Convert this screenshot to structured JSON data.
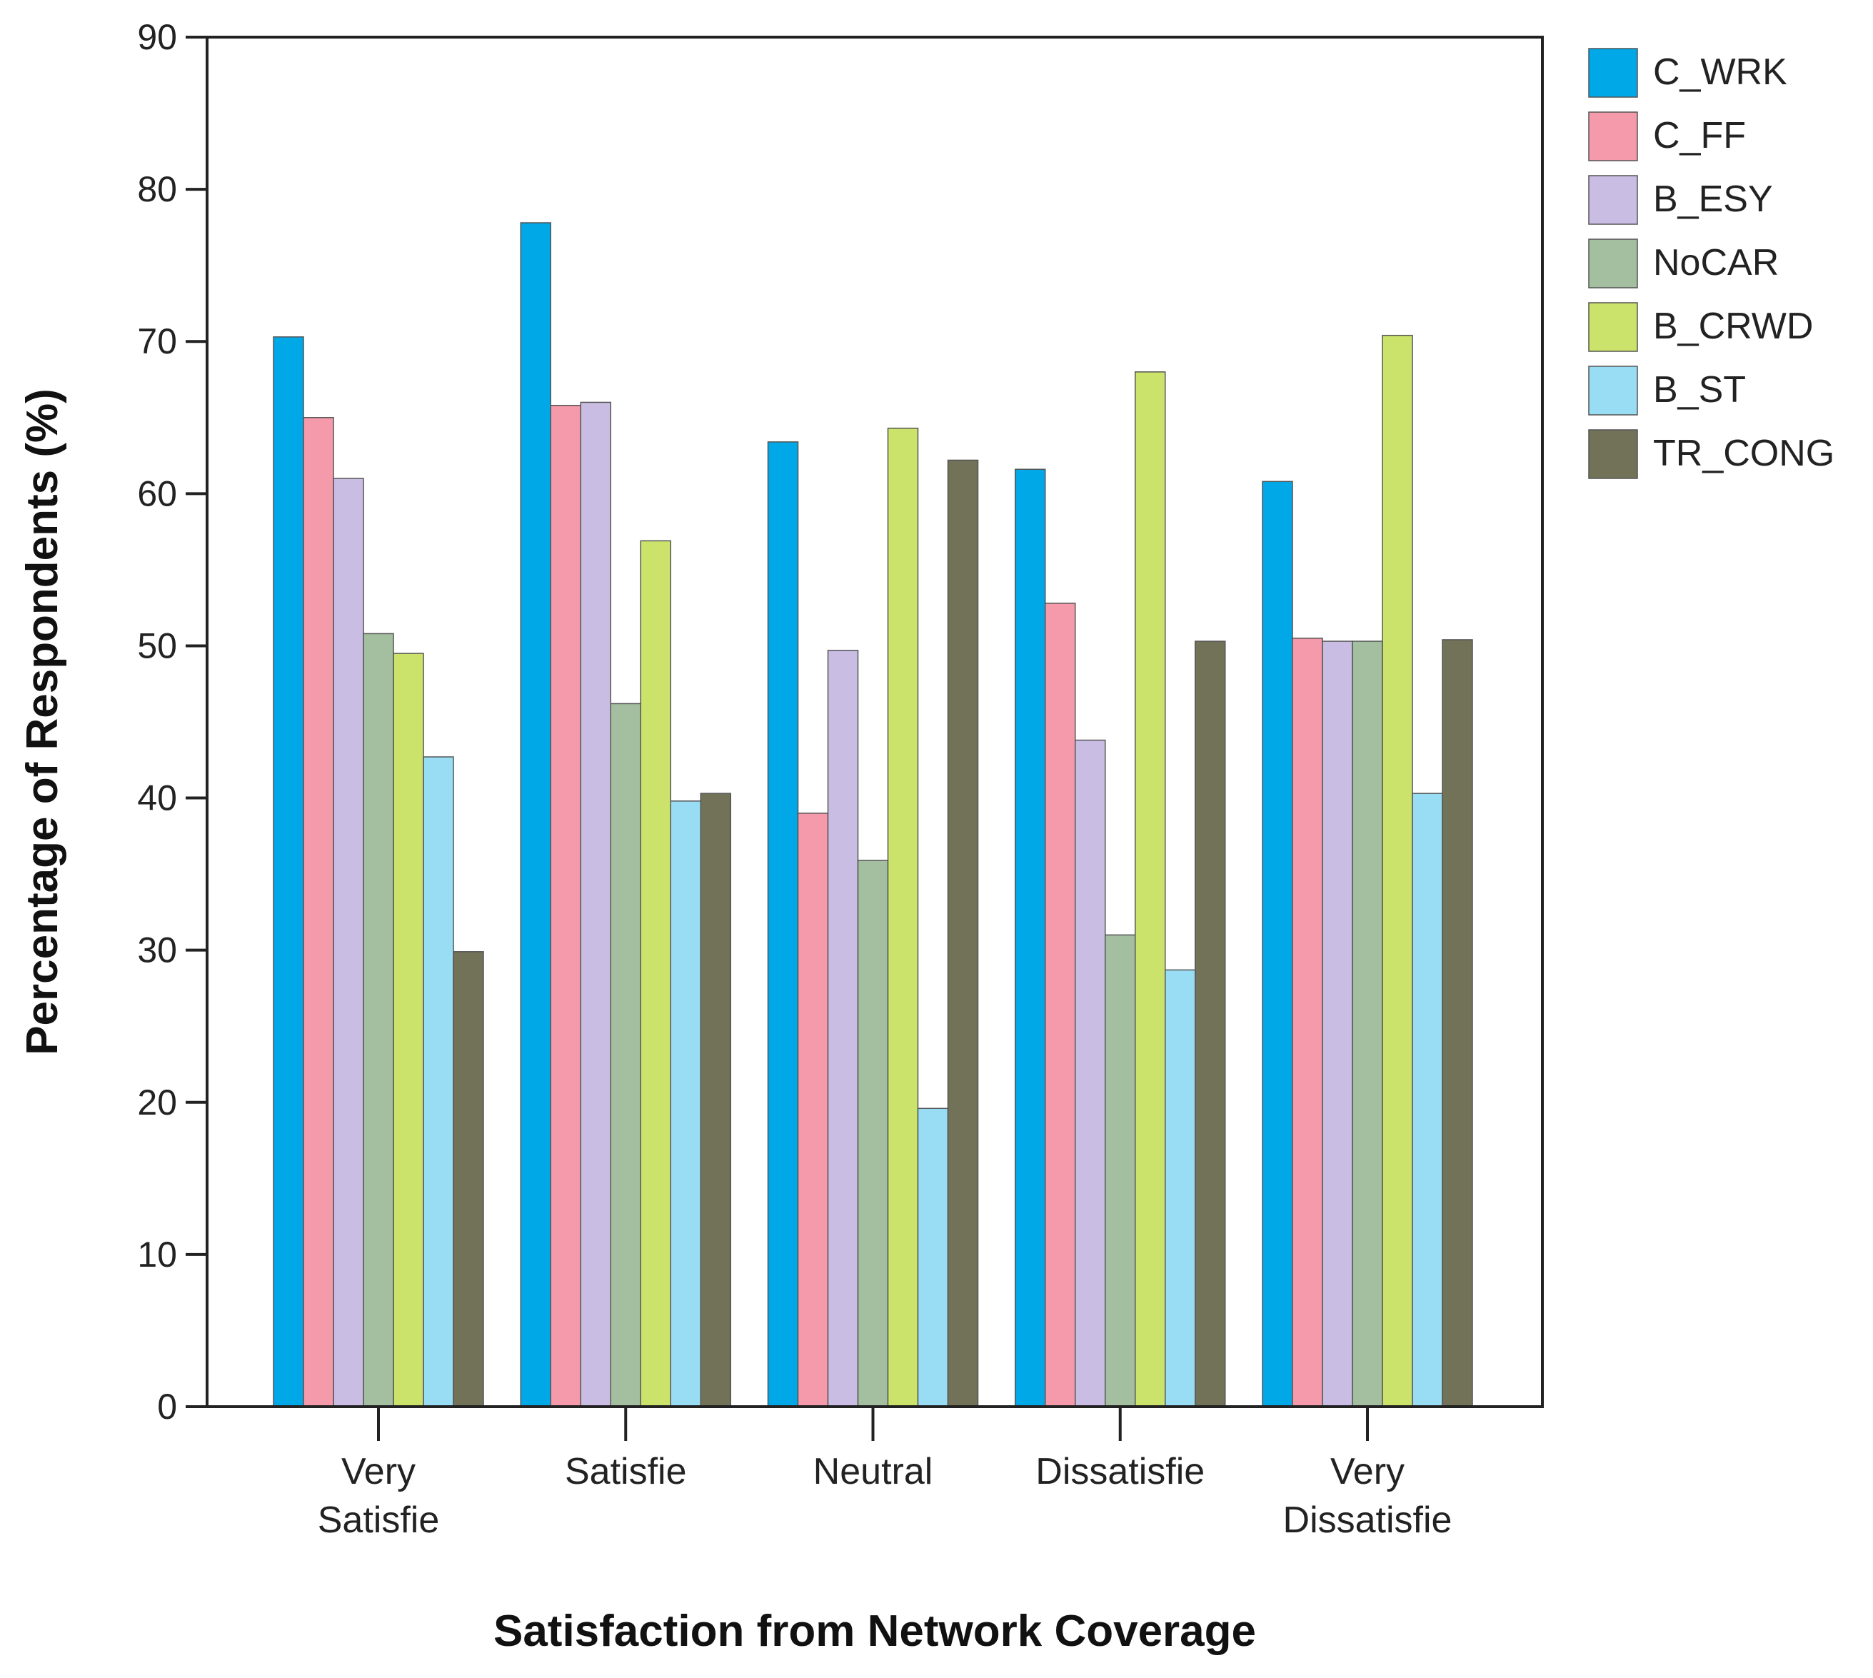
{
  "chart_data": {
    "type": "bar",
    "xlabel": "Satisfaction from Network Coverage",
    "ylabel": "Percentage of Respondents (%)",
    "categories": [
      [
        "Very",
        "Satisfie"
      ],
      [
        "Satisfie"
      ],
      [
        "Neutral"
      ],
      [
        "Dissatisfie"
      ],
      [
        "Very",
        "Dissatisfie"
      ]
    ],
    "ylim": [
      0,
      90
    ],
    "yticks": [
      "0",
      "10",
      "20",
      "30",
      "40",
      "50",
      "60",
      "70",
      "80",
      "90"
    ],
    "legend_position": "right",
    "grid": false,
    "series": [
      {
        "name": "C_WRK",
        "color": "#00a8e8",
        "values": [
          70.3,
          77.8,
          63.4,
          61.6,
          60.8
        ]
      },
      {
        "name": "C_FF",
        "color": "#f59aaa",
        "values": [
          65.0,
          65.8,
          39.0,
          52.8,
          50.5
        ]
      },
      {
        "name": "B_ESY",
        "color": "#c9bde3",
        "values": [
          61.0,
          66.0,
          49.7,
          43.8,
          50.3
        ]
      },
      {
        "name": "NoCAR",
        "color": "#a3bf9f",
        "values": [
          50.8,
          46.2,
          35.9,
          31.0,
          50.3
        ]
      },
      {
        "name": "B_CRWD",
        "color": "#cce36b",
        "values": [
          49.5,
          56.9,
          64.3,
          68.0,
          70.4
        ]
      },
      {
        "name": "B_ST",
        "color": "#99ddf5",
        "values": [
          42.7,
          39.8,
          19.6,
          28.7,
          40.3
        ]
      },
      {
        "name": "TR_CONG",
        "color": "#727258",
        "values": [
          29.9,
          40.3,
          62.2,
          50.3,
          50.4
        ]
      }
    ]
  }
}
